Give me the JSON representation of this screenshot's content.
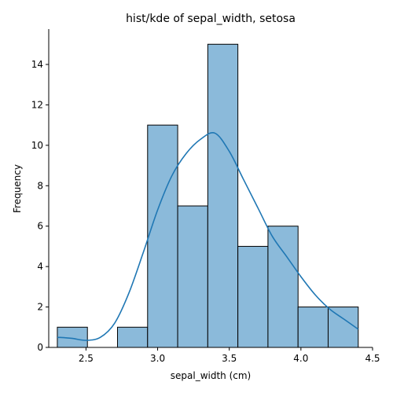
{
  "chart_data": {
    "type": "histogram",
    "title": "hist/kde of sepal_width, setosa",
    "xlabel": "sepal_width (cm)",
    "ylabel": "Frequency",
    "xlim": [
      2.24,
      4.5
    ],
    "ylim": [
      0,
      15.75
    ],
    "bin_edges": [
      2.3,
      2.51,
      2.72,
      2.93,
      3.14,
      3.35,
      3.56,
      3.77,
      3.98,
      4.19,
      4.4
    ],
    "counts": [
      1,
      0,
      1,
      11,
      7,
      15,
      5,
      6,
      2,
      2
    ],
    "x_ticks": [
      2.5,
      3.0,
      3.5,
      4.0,
      4.5
    ],
    "x_tick_labels": [
      "2.5",
      "3.0",
      "3.5",
      "4.0",
      "4.5"
    ],
    "y_ticks": [
      0,
      2,
      4,
      6,
      8,
      10,
      12,
      14
    ],
    "y_tick_labels": [
      "0",
      "2",
      "4",
      "6",
      "8",
      "10",
      "12",
      "14"
    ],
    "kde": {
      "x": [
        2.3,
        2.4,
        2.5,
        2.6,
        2.7,
        2.8,
        2.9,
        3.0,
        3.1,
        3.2,
        3.3,
        3.4,
        3.5,
        3.6,
        3.7,
        3.8,
        3.9,
        4.0,
        4.1,
        4.2,
        4.3,
        4.4
      ],
      "y": [
        0.5,
        0.45,
        0.35,
        0.5,
        1.2,
        2.7,
        4.7,
        6.8,
        8.5,
        9.6,
        10.3,
        10.6,
        9.7,
        8.3,
        6.9,
        5.5,
        4.5,
        3.5,
        2.6,
        1.9,
        1.4,
        0.9
      ]
    },
    "grid": false,
    "colors": {
      "bar_fill": "#8bbada",
      "bar_edge": "#000000",
      "kde_line": "#1f77b4",
      "axis": "#000000"
    }
  }
}
